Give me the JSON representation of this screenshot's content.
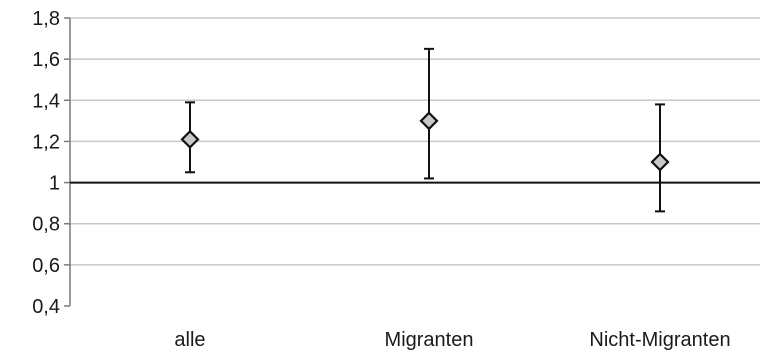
{
  "chart_data": {
    "type": "scatter",
    "categories": [
      "alle",
      "Migranten",
      "Nicht-Migranten"
    ],
    "points": [
      {
        "category": "alle",
        "value": 1.21,
        "lower": 1.05,
        "upper": 1.39
      },
      {
        "category": "Migranten",
        "value": 1.3,
        "lower": 1.02,
        "upper": 1.65
      },
      {
        "category": "Nicht-Migranten",
        "value": 1.1,
        "lower": 0.86,
        "upper": 1.38
      }
    ],
    "yticks": [
      0.4,
      0.6,
      0.8,
      1.0,
      1.2,
      1.4,
      1.6,
      1.8
    ],
    "ytick_labels": [
      "0,4",
      "0,6",
      "0,8",
      "1",
      "1,2",
      "1,4",
      "1,6",
      "1,8"
    ],
    "ylim": [
      0.4,
      1.8
    ],
    "reference_line": 1.0,
    "grid": "horizontal",
    "marker": "diamond",
    "marker_fill": "#c9c9c9",
    "line_color": "#111111",
    "gridline_color": "#c8c8c8"
  }
}
